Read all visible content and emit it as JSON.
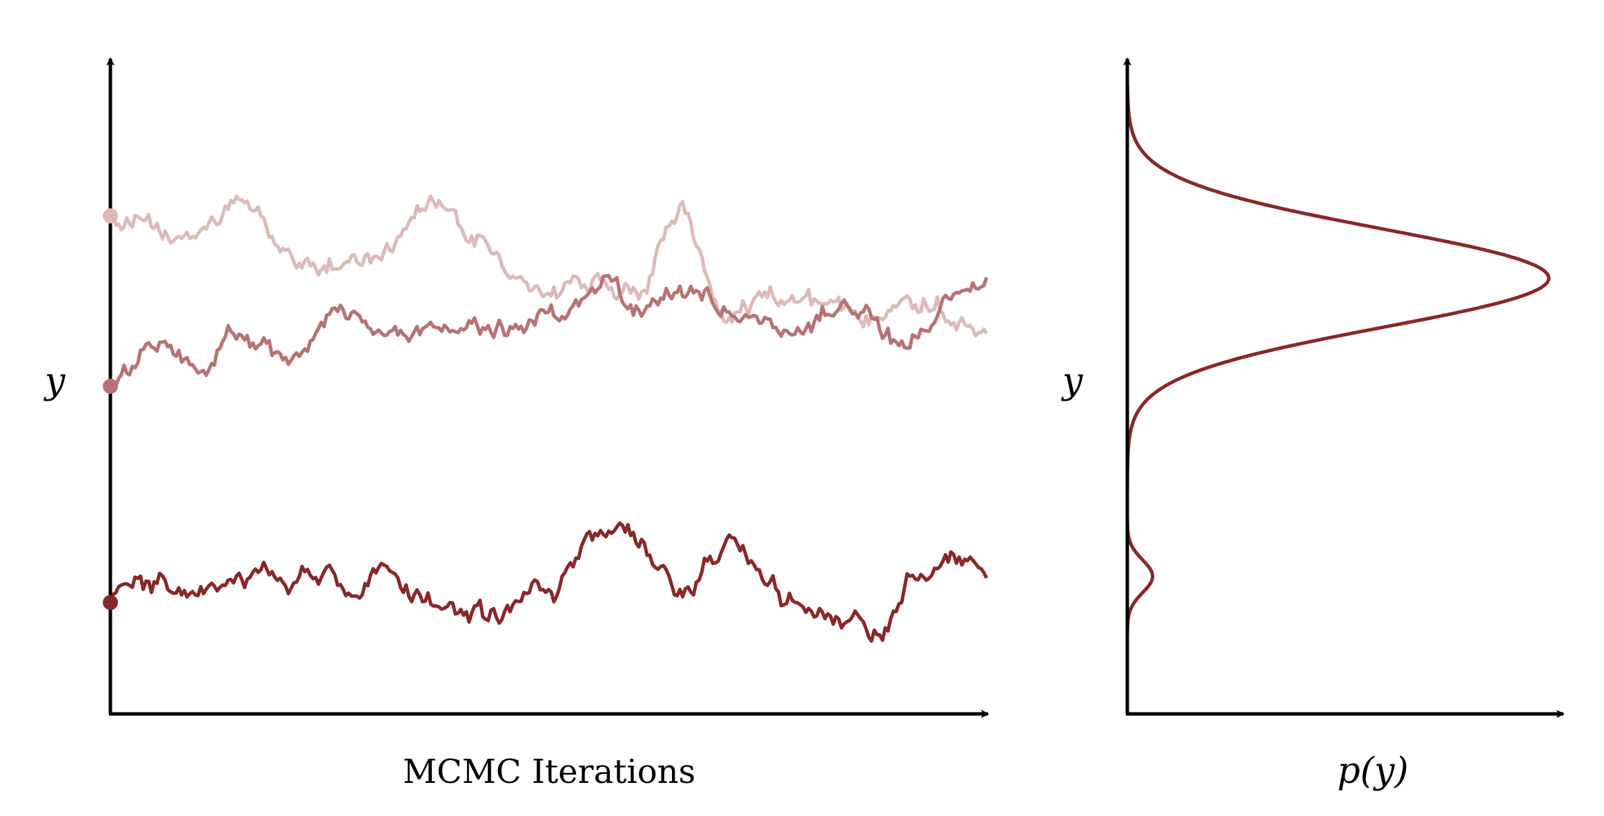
{
  "colors": {
    "chain_dark": "#8b2727",
    "chain_mid": "#b87272",
    "chain_light": "#ddbab9",
    "density": "#8b2727",
    "axis": "#000000"
  },
  "left_panel": {
    "y_label": "y",
    "x_label": "MCMC Iterations"
  },
  "right_panel": {
    "y_label": "y",
    "x_label": "p(y)"
  },
  "chart_data": [
    {
      "type": "line",
      "title": "",
      "xlabel": "MCMC Iterations",
      "ylabel": "y",
      "ylim": [
        0,
        1
      ],
      "n_points": 320,
      "series": [
        {
          "color": "#ddbab9",
          "start": 0.76,
          "mean": 0.66,
          "anchors": [
            [
              0,
              0.76
            ],
            [
              0.08,
              0.72
            ],
            [
              0.15,
              0.78
            ],
            [
              0.22,
              0.68
            ],
            [
              0.3,
              0.7
            ],
            [
              0.36,
              0.78
            ],
            [
              0.42,
              0.72
            ],
            [
              0.48,
              0.64
            ],
            [
              0.55,
              0.66
            ],
            [
              0.6,
              0.64
            ],
            [
              0.65,
              0.76
            ],
            [
              0.7,
              0.62
            ],
            [
              0.75,
              0.64
            ],
            [
              0.8,
              0.62
            ],
            [
              0.85,
              0.6
            ],
            [
              0.9,
              0.64
            ],
            [
              1.0,
              0.6
            ]
          ]
        },
        {
          "color": "#b87272",
          "start": 0.5,
          "mean": 0.62,
          "anchors": [
            [
              0,
              0.5
            ],
            [
              0.05,
              0.56
            ],
            [
              0.1,
              0.52
            ],
            [
              0.15,
              0.58
            ],
            [
              0.2,
              0.53
            ],
            [
              0.26,
              0.6
            ],
            [
              0.32,
              0.56
            ],
            [
              0.38,
              0.6
            ],
            [
              0.44,
              0.58
            ],
            [
              0.5,
              0.61
            ],
            [
              0.56,
              0.66
            ],
            [
              0.6,
              0.62
            ],
            [
              0.67,
              0.64
            ],
            [
              0.72,
              0.6
            ],
            [
              0.78,
              0.58
            ],
            [
              0.85,
              0.62
            ],
            [
              0.9,
              0.58
            ],
            [
              1.0,
              0.66
            ]
          ]
        },
        {
          "color": "#8b2727",
          "start": 0.17,
          "mean": 0.2,
          "anchors": [
            [
              0,
              0.17
            ],
            [
              0.05,
              0.19
            ],
            [
              0.12,
              0.18
            ],
            [
              0.18,
              0.21
            ],
            [
              0.25,
              0.2
            ],
            [
              0.32,
              0.22
            ],
            [
              0.38,
              0.16
            ],
            [
              0.44,
              0.15
            ],
            [
              0.5,
              0.19
            ],
            [
              0.55,
              0.25
            ],
            [
              0.6,
              0.26
            ],
            [
              0.65,
              0.2
            ],
            [
              0.72,
              0.26
            ],
            [
              0.78,
              0.18
            ],
            [
              0.83,
              0.15
            ],
            [
              0.88,
              0.12
            ],
            [
              0.92,
              0.22
            ],
            [
              0.97,
              0.24
            ],
            [
              1.0,
              0.23
            ]
          ]
        }
      ]
    },
    {
      "type": "line",
      "title": "",
      "xlabel": "p(y)",
      "ylabel": "y",
      "ylim": [
        0,
        1
      ],
      "xlim": [
        0,
        1
      ],
      "components": [
        {
          "weight": 1.0,
          "mean": 0.665,
          "sd": 0.075
        },
        {
          "weight": 0.06,
          "mean": 0.21,
          "sd": 0.025
        }
      ]
    }
  ]
}
